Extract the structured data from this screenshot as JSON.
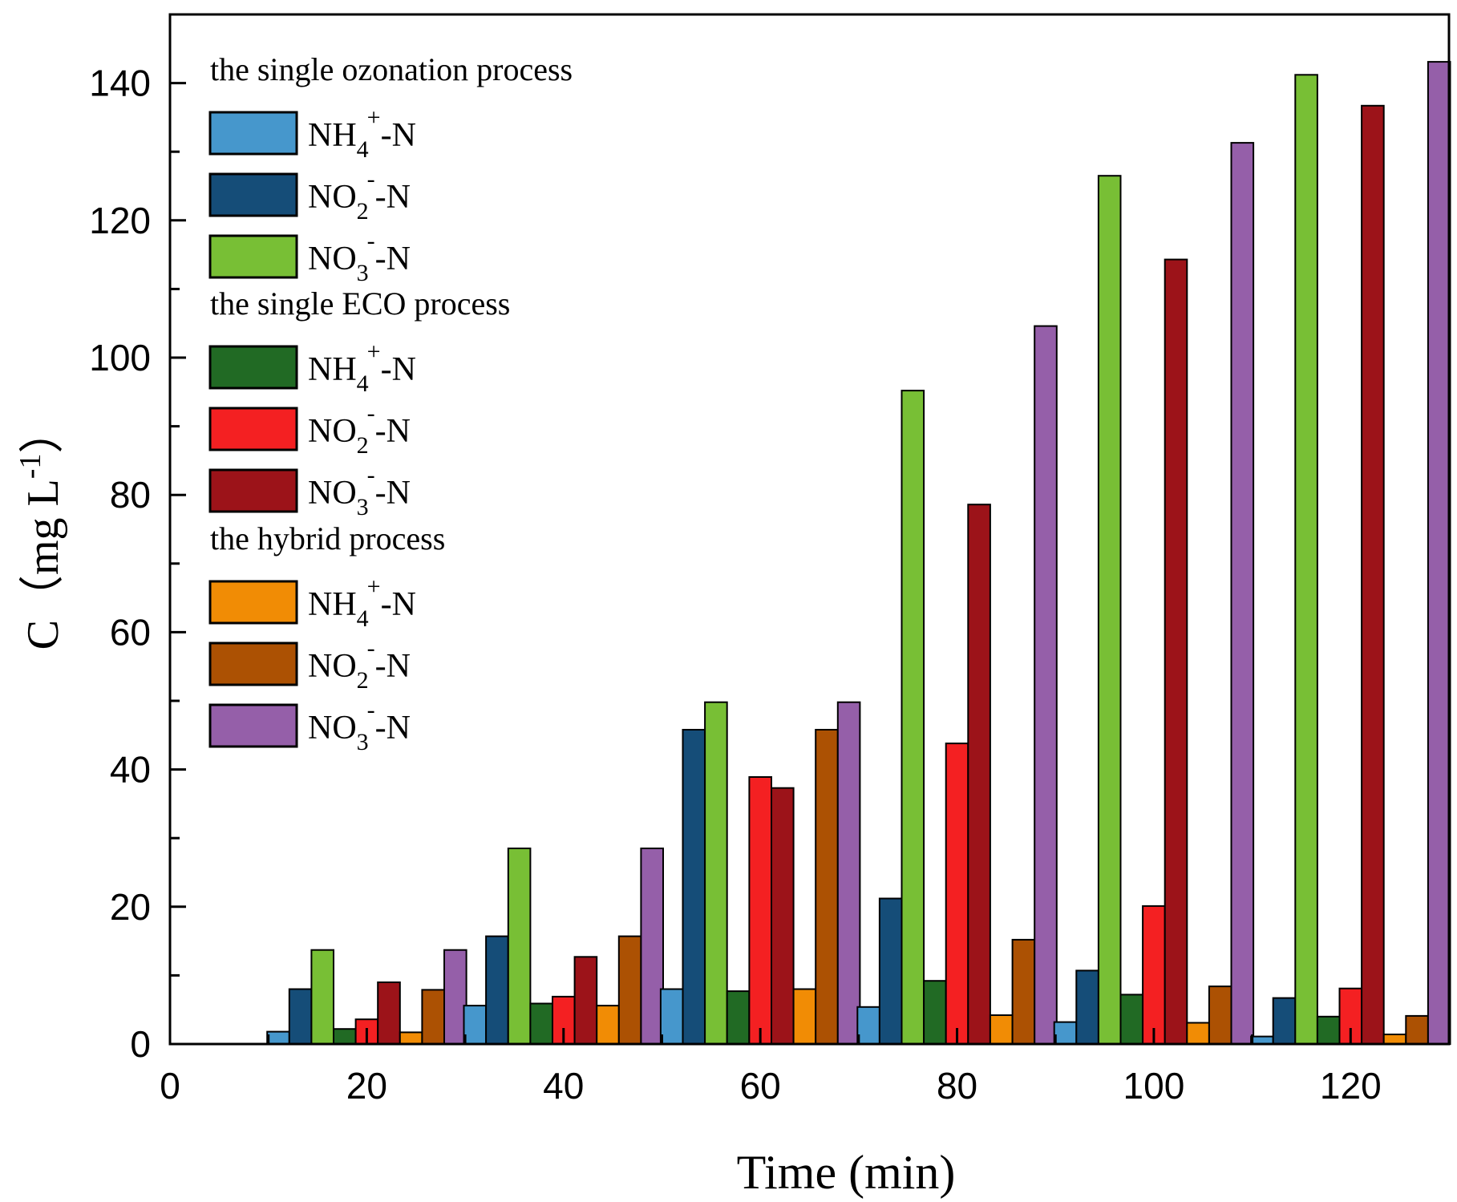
{
  "chart_data": {
    "type": "bar",
    "xlabel": "Time (min)",
    "ylabel_main": "C",
    "ylabel_unit": "mg L",
    "ylabel_unit_sup": "-1",
    "xlim": [
      0,
      130
    ],
    "ylim": [
      0,
      150
    ],
    "x_ticks": [
      0,
      20,
      40,
      60,
      80,
      100,
      120
    ],
    "y_ticks": [
      0,
      20,
      40,
      60,
      80,
      100,
      120,
      140
    ],
    "x": [
      20,
      40,
      60,
      80,
      100,
      120
    ],
    "groups": [
      {
        "title": "the single ozonation process",
        "series": [
          {
            "name": "NH4+-N",
            "color": "#4697cc",
            "values": [
              1.8,
              5.6,
              8.0,
              5.4,
              3.2,
              1.1
            ]
          },
          {
            "name": "NO2--N",
            "color": "#154d78",
            "values": [
              8.0,
              15.7,
              45.8,
              21.2,
              10.7,
              6.7
            ]
          },
          {
            "name": "NO3--N",
            "color": "#78bf35",
            "values": [
              13.7,
              28.5,
              49.8,
              95.2,
              126.5,
              141.2
            ]
          }
        ]
      },
      {
        "title": "the single ECO process",
        "series": [
          {
            "name": "NH4+-N",
            "color": "#216a24",
            "values": [
              2.2,
              5.9,
              7.7,
              9.2,
              7.2,
              4.0
            ]
          },
          {
            "name": "NO2--N",
            "color": "#f42022",
            "values": [
              3.6,
              6.9,
              38.9,
              43.8,
              20.1,
              8.1
            ]
          },
          {
            "name": "NO3--N",
            "color": "#9c1319",
            "values": [
              9.0,
              12.7,
              37.3,
              78.6,
              114.3,
              136.7
            ]
          }
        ]
      },
      {
        "title": "the hybrid process",
        "series": [
          {
            "name": "NH4+-N",
            "color": "#f18c05",
            "values": [
              1.7,
              5.6,
              8.0,
              4.2,
              3.1,
              1.4
            ]
          },
          {
            "name": "NO2--N",
            "color": "#ac5103",
            "values": [
              7.9,
              15.7,
              45.8,
              15.2,
              8.4,
              4.1
            ]
          },
          {
            "name": "NO3--N",
            "color": "#955fa9",
            "values": [
              13.7,
              28.5,
              49.8,
              104.6,
              131.3,
              143.1
            ]
          }
        ]
      }
    ],
    "legend": {
      "placement": "top-left",
      "entries": [
        {
          "base": "NH",
          "sub": "4",
          "sup": "+",
          "tail": "-N"
        },
        {
          "base": "NO",
          "sub": "2",
          "sup": "-",
          "tail": "-N"
        },
        {
          "base": "NO",
          "sub": "3",
          "sup": "-",
          "tail": "-N"
        }
      ]
    },
    "grid": false
  }
}
